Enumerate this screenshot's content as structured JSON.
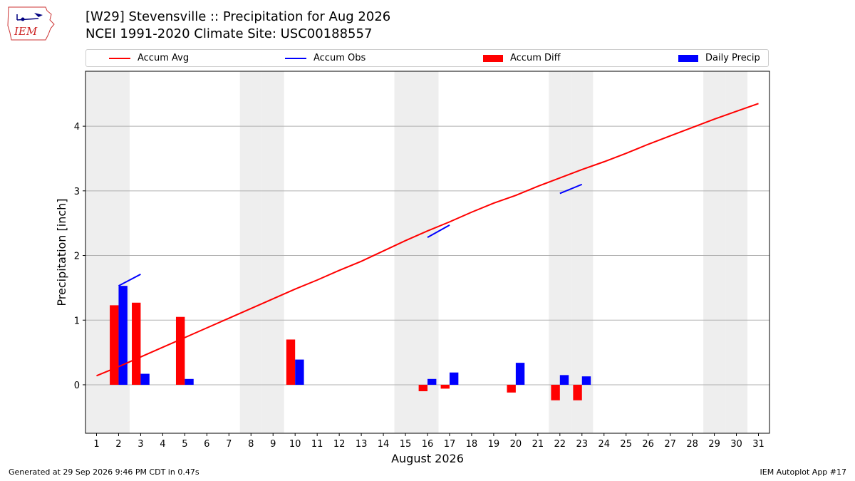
{
  "title_line1": "[W29] Stevensville :: Precipitation for Aug 2026",
  "title_line2": "NCEI 1991-2020 Climate Site: USC00188557",
  "logo_text": "IEM",
  "footer_left": "Generated at 29 Sep 2026 9:46 PM CDT in 0.47s",
  "footer_right": "IEM Autoplot App #17",
  "colors": {
    "accum_avg": "#ff0000",
    "accum_obs": "#0000ff",
    "accum_diff": "#ff0000",
    "daily_precip": "#0000ff",
    "weekend_shade": "#eeeeee",
    "grid": "#b0b0b0"
  },
  "chart_data": {
    "type": "bar",
    "xlabel": "August 2026",
    "ylabel": "Precipitation [inch]",
    "xlim": [
      0.5,
      31.5
    ],
    "ylim": [
      -0.75,
      4.85
    ],
    "grid": true,
    "legend_position": "top",
    "x_tick_labels": [
      "1",
      "2",
      "3",
      "4",
      "5",
      "6",
      "7",
      "8",
      "9",
      "10",
      "11",
      "12",
      "13",
      "14",
      "15",
      "16",
      "17",
      "18",
      "19",
      "20",
      "21",
      "22",
      "23",
      "24",
      "25",
      "26",
      "27",
      "28",
      "29",
      "30",
      "31"
    ],
    "y_ticks": [
      0,
      1,
      2,
      3,
      4
    ],
    "y_tick_labels": [
      "0",
      "1",
      "2",
      "3",
      "4"
    ],
    "legend": [
      "Accum Avg",
      "Accum Obs",
      "Accum Diff",
      "Daily Precip"
    ],
    "weekend_days": [
      1,
      2,
      8,
      9,
      15,
      16,
      22,
      23,
      29,
      30
    ],
    "series": [
      {
        "name": "Accum Avg",
        "kind": "line",
        "x": [
          1,
          2,
          3,
          4,
          5,
          6,
          7,
          8,
          9,
          10,
          11,
          12,
          13,
          14,
          15,
          16,
          17,
          18,
          19,
          20,
          21,
          22,
          23,
          24,
          25,
          26,
          27,
          28,
          29,
          30,
          31
        ],
        "values": [
          0.14,
          0.28,
          0.43,
          0.58,
          0.73,
          0.88,
          1.03,
          1.18,
          1.33,
          1.48,
          1.62,
          1.77,
          1.91,
          2.07,
          2.23,
          2.38,
          2.52,
          2.67,
          2.81,
          2.93,
          3.07,
          3.2,
          3.33,
          3.45,
          3.58,
          3.72,
          3.85,
          3.98,
          4.11,
          4.23,
          4.35
        ]
      },
      {
        "name": "Accum Obs",
        "kind": "line",
        "segments": [
          {
            "x": [
              2,
              3
            ],
            "values": [
              1.53,
              1.71
            ]
          },
          {
            "x": [
              16,
              17
            ],
            "values": [
              2.28,
              2.47
            ]
          },
          {
            "x": [
              22,
              23
            ],
            "values": [
              2.96,
              3.1
            ]
          }
        ]
      },
      {
        "name": "Accum Diff",
        "kind": "bar",
        "x": [
          2,
          3,
          5,
          10,
          16,
          17,
          20,
          22,
          23
        ],
        "values": [
          1.23,
          1.27,
          1.05,
          0.7,
          -0.1,
          -0.06,
          -0.12,
          -0.24,
          -0.24
        ]
      },
      {
        "name": "Daily Precip",
        "kind": "bar",
        "x": [
          2,
          3,
          5,
          10,
          16,
          17,
          20,
          22,
          23
        ],
        "values": [
          1.53,
          0.17,
          0.09,
          0.39,
          0.09,
          0.19,
          0.34,
          0.15,
          0.13
        ]
      }
    ]
  }
}
